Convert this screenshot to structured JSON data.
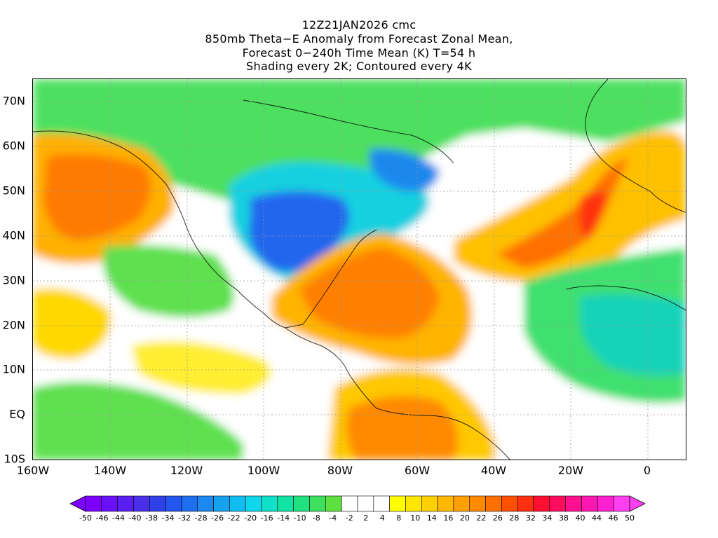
{
  "titles": [
    "12Z21JAN2026 cmc",
    "850mb Theta−E Anomaly from Forecast Zonal Mean,",
    "Forecast 0−240h Time Mean (K) T=54 h",
    "Shading every 2K; Contoured every 4K"
  ],
  "axes": {
    "lat_labels": [
      "70N",
      "60N",
      "50N",
      "40N",
      "30N",
      "20N",
      "10N",
      "EQ",
      "10S"
    ],
    "lon_labels": [
      "160W",
      "140W",
      "120W",
      "100W",
      "80W",
      "60W",
      "40W",
      "20W",
      "0"
    ],
    "lat_range": [
      -10,
      75
    ],
    "lon_range": [
      -160,
      10
    ]
  },
  "colorbar": {
    "labels": [
      "-50",
      "-46",
      "-44",
      "-40",
      "-38",
      "-34",
      "-32",
      "-28",
      "-26",
      "-22",
      "-20",
      "-16",
      "-14",
      "-10",
      "-8",
      "-4",
      "-2",
      "2",
      "4",
      "8",
      "10",
      "14",
      "16",
      "20",
      "22",
      "26",
      "28",
      "32",
      "34",
      "38",
      "40",
      "44",
      "46",
      "50"
    ],
    "colors": [
      "#7b00ff",
      "#6a10f8",
      "#5a1ff0",
      "#4a2ee8",
      "#3040e8",
      "#2455ee",
      "#1e6ef0",
      "#1d88f0",
      "#16a2ee",
      "#12bcf0",
      "#10d6ec",
      "#10e0c8",
      "#12e2a4",
      "#20e080",
      "#3ee060",
      "#5ee040",
      "#ffffff",
      "#ffffff",
      "#ffffff",
      "#ffff00",
      "#ffe600",
      "#ffd000",
      "#ffb800",
      "#ffa000",
      "#ff8a00",
      "#ff7000",
      "#ff5000",
      "#ff3010",
      "#ff1030",
      "#ff0e60",
      "#ff1090",
      "#ff18b0",
      "#ff20d0",
      "#ff40f0"
    ]
  }
}
